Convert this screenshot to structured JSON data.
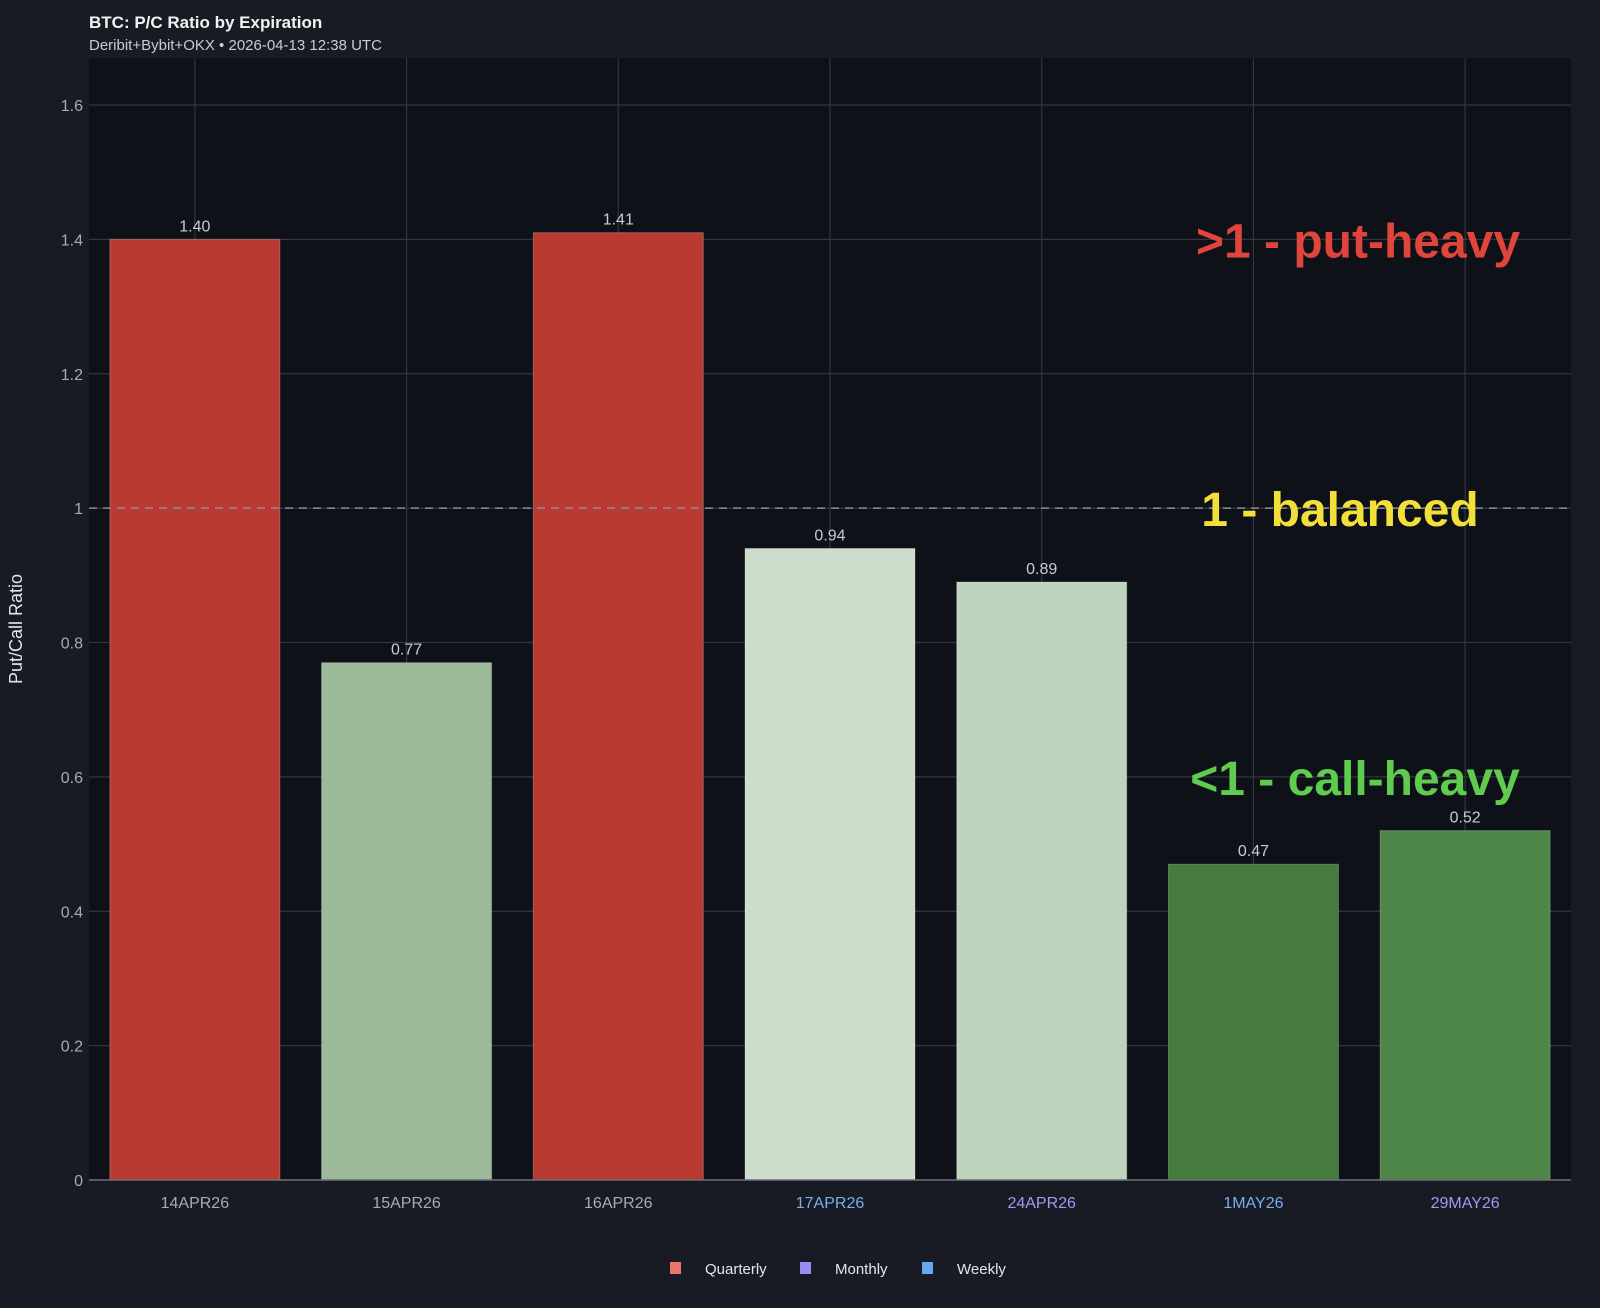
{
  "chart_data": {
    "type": "bar",
    "title": "BTC: P/C Ratio by Expiration",
    "subtitle": "Deribit+Bybit+OKX • 2026-04-13 12:38 UTC",
    "ylabel": "Put/Call Ratio",
    "xlabel": "",
    "ylim": [
      0,
      1.67
    ],
    "yticks": [
      0,
      0.2,
      0.4,
      0.6,
      0.8,
      1,
      1.2,
      1.4,
      1.6
    ],
    "ytick_labels": [
      "0",
      "0.2",
      "0.4",
      "0.6",
      "0.8",
      "1",
      "1.2",
      "1.4",
      "1.6"
    ],
    "grid": true,
    "categories": [
      "14APR26",
      "15APR26",
      "16APR26",
      "17APR26",
      "24APR26",
      "1MAY26",
      "29MAY26"
    ],
    "values": [
      1.4,
      0.77,
      1.41,
      0.94,
      0.89,
      0.47,
      0.52
    ],
    "data_labels": [
      "1.40",
      "0.77",
      "1.41",
      "0.94",
      "0.89",
      "0.47",
      "0.52"
    ],
    "bar_colors": [
      "#b93a30",
      "#9cb99a",
      "#b93a30",
      "#ccdecb",
      "#bed5bd",
      "#457c3d",
      "#4f8748"
    ],
    "category_types": [
      "",
      "",
      "",
      "Weekly",
      "Monthly",
      "Weekly",
      "Monthly"
    ],
    "reference_line": {
      "y": 1,
      "style": "dashed"
    },
    "annotations": [
      {
        "text": ">1 - put-heavy",
        "y": 1.4,
        "color": "#e0453b"
      },
      {
        "text": "1 - balanced",
        "y": 1.0,
        "color": "#f2df3a"
      },
      {
        "text": "<1 - call-heavy",
        "y": 0.6,
        "color": "#5fcc4f"
      }
    ],
    "legend": {
      "position": "bottom",
      "items": [
        {
          "label": "Quarterly",
          "color": "#e8766e"
        },
        {
          "label": "Monthly",
          "color": "#9b8cf0"
        },
        {
          "label": "Weekly",
          "color": "#69a6f0"
        }
      ]
    },
    "type_colors": {
      "Quarterly": "#e8766e",
      "Monthly": "#a697f5",
      "Weekly": "#78aef2",
      "": "#a7abb4"
    }
  }
}
